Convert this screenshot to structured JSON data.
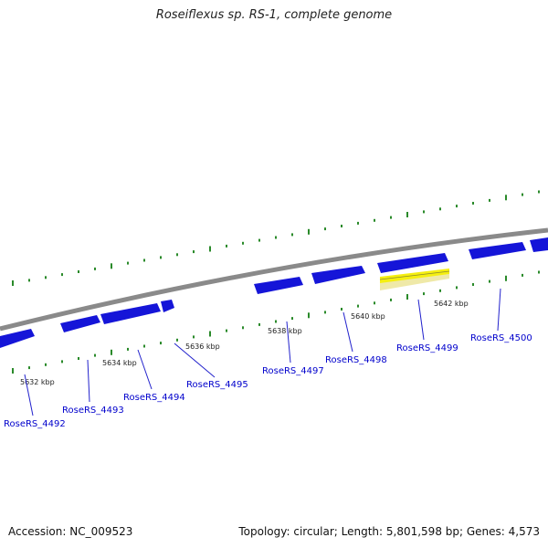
{
  "header": {
    "title": "Roseiflexus sp. RS-1, complete genome"
  },
  "footer": {
    "accession": "Accession: NC_009523",
    "topology": "Topology: circular; Length: 5,801,598 bp; Genes: 4,573"
  },
  "colors": {
    "backbone": "#888888",
    "gene": "#1515d8",
    "highlight": "#f5ef10",
    "gc": "#2a8a2a",
    "label": "#0000cc"
  },
  "ticks": [
    {
      "label": "5632 kbp"
    },
    {
      "label": "5634 kbp"
    },
    {
      "label": "5636 kbp"
    },
    {
      "label": "5638 kbp"
    },
    {
      "label": "5640 kbp"
    },
    {
      "label": "5642 kbp"
    }
  ],
  "genes": [
    {
      "label": "RoseRS_4492"
    },
    {
      "label": "RoseRS_4493"
    },
    {
      "label": "RoseRS_4494"
    },
    {
      "label": "RoseRS_4495"
    },
    {
      "label": "RoseRS_4497"
    },
    {
      "label": "RoseRS_4498"
    },
    {
      "label": "RoseRS_4499",
      "highlighted": true
    },
    {
      "label": "RoseRS_4500"
    }
  ]
}
